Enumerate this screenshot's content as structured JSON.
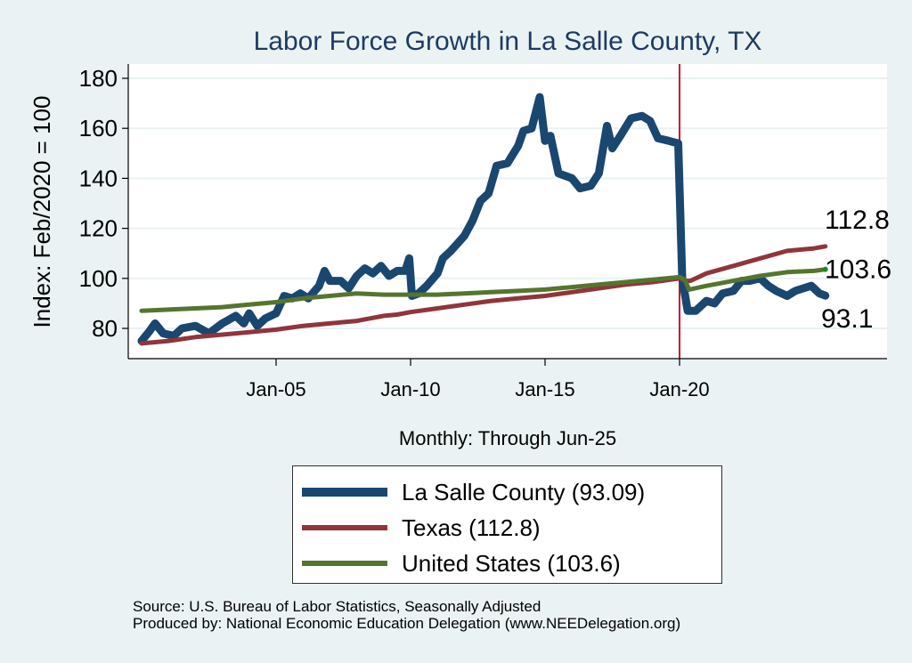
{
  "chart_data": {
    "type": "line",
    "title": "Labor Force Growth in La Salle  County, TX",
    "xlabel": "Monthly: Through Jun-25",
    "ylabel": "Index: Feb/2020 = 100",
    "ylim": [
      70,
      185
    ],
    "xlim": [
      1999.5,
      2028.2
    ],
    "yticks": [
      80,
      100,
      120,
      140,
      160,
      180
    ],
    "xticks": [
      {
        "x": 2005,
        "label": "Jan-05"
      },
      {
        "x": 2010,
        "label": "Jan-10"
      },
      {
        "x": 2015,
        "label": "Jan-15"
      },
      {
        "x": 2020,
        "label": "Jan-20"
      }
    ],
    "vline": {
      "x": 2020.0,
      "color": "#c8102e"
    },
    "grid": true,
    "legend_position": "bottom",
    "series": [
      {
        "name": "La Salle  County",
        "legend_label": "La Salle  County (93.09)",
        "color": "#1a476f",
        "end_label": "93.1",
        "x": [
          2000.0,
          2000.3,
          2000.5,
          2000.8,
          2001.2,
          2001.5,
          2002.0,
          2002.5,
          2003.0,
          2003.5,
          2003.8,
          2004.0,
          2004.3,
          2004.6,
          2005.0,
          2005.3,
          2005.6,
          2005.9,
          2006.2,
          2006.6,
          2006.8,
          2007.0,
          2007.4,
          2007.7,
          2008.0,
          2008.3,
          2008.6,
          2008.9,
          2009.2,
          2009.5,
          2009.8,
          2009.95,
          2010.05,
          2010.3,
          2010.6,
          2011.0,
          2011.2,
          2011.5,
          2012.0,
          2012.3,
          2012.6,
          2012.9,
          2013.2,
          2013.6,
          2014.0,
          2014.2,
          2014.5,
          2014.8,
          2015.0,
          2015.2,
          2015.5,
          2016.0,
          2016.3,
          2016.7,
          2017.0,
          2017.3,
          2017.5,
          2017.8,
          2018.2,
          2018.6,
          2018.9,
          2019.2,
          2019.6,
          2019.95,
          2020.1,
          2020.3,
          2020.6,
          2021.0,
          2021.3,
          2021.6,
          2022.0,
          2022.3,
          2022.6,
          2023.0,
          2023.3,
          2023.6,
          2024.0,
          2024.3,
          2024.6,
          2024.9,
          2025.2,
          2025.42
        ],
        "values": [
          75,
          79,
          82,
          78,
          77,
          80,
          81,
          78,
          82,
          85,
          82,
          86,
          81,
          84,
          86,
          93,
          92,
          94,
          92,
          97,
          103,
          99,
          99,
          96,
          101,
          104,
          102,
          105,
          101,
          103,
          103,
          108,
          93,
          94,
          97,
          102,
          108,
          111,
          117,
          123,
          131,
          134,
          145,
          146,
          153,
          159,
          160,
          172.5,
          155,
          157,
          142,
          140,
          136,
          137,
          142,
          161,
          152,
          157,
          164,
          165,
          163,
          156,
          155,
          154,
          100,
          87,
          87,
          91,
          90,
          94,
          95,
          99,
          99,
          100,
          97,
          95,
          93,
          95,
          96,
          97,
          94,
          93.1
        ]
      },
      {
        "name": "Texas",
        "legend_label": "Texas (112.8)",
        "color": "#90353b",
        "end_label": "112.8",
        "x": [
          2000.0,
          2001.0,
          2002.0,
          2003.0,
          2004.0,
          2005.0,
          2006.0,
          2007.0,
          2008.0,
          2009.0,
          2009.5,
          2010.0,
          2011.0,
          2012.0,
          2013.0,
          2014.0,
          2015.0,
          2016.0,
          2017.0,
          2018.0,
          2019.0,
          2020.0,
          2020.2,
          2020.4,
          2021.0,
          2022.0,
          2023.0,
          2024.0,
          2025.0,
          2025.42
        ],
        "values": [
          74,
          75,
          76.5,
          77.5,
          78.5,
          79.5,
          81,
          82,
          83,
          85,
          85.5,
          86.5,
          88,
          89.5,
          91,
          92,
          93,
          94.5,
          96,
          97.5,
          98.5,
          100,
          99,
          99,
          102,
          105,
          108,
          111,
          112,
          112.8
        ]
      },
      {
        "name": "United States",
        "legend_label": "United States (103.6)",
        "color": "#55752f",
        "end_label": "103.6",
        "x": [
          2000.0,
          2001.0,
          2002.0,
          2003.0,
          2004.0,
          2005.0,
          2006.0,
          2007.0,
          2008.0,
          2009.0,
          2010.0,
          2011.0,
          2012.0,
          2013.0,
          2014.0,
          2015.0,
          2016.0,
          2017.0,
          2018.0,
          2019.0,
          2020.0,
          2020.2,
          2020.35,
          2021.0,
          2022.0,
          2023.0,
          2024.0,
          2025.0,
          2025.42
        ],
        "values": [
          87,
          87.5,
          88,
          88.5,
          89.5,
          90.5,
          92,
          93,
          94,
          93.5,
          93.5,
          93.5,
          94,
          94.5,
          95,
          95.5,
          96.5,
          97.5,
          98.5,
          99.5,
          100.5,
          99.5,
          95.5,
          97,
          99,
          101,
          102.5,
          103,
          103.6
        ]
      }
    ]
  },
  "footer": {
    "source": "Source: U.S. Bureau of Labor Statistics, Seasonally Adjusted",
    "produced": "Produced by: National Economic Education Delegation (www.NEEDelegation.org)"
  },
  "colors": {
    "background": "#eaf2f3",
    "plot_background": "#ffffff",
    "gridline": "#eaf2f3",
    "title": "#1e3a5f"
  }
}
